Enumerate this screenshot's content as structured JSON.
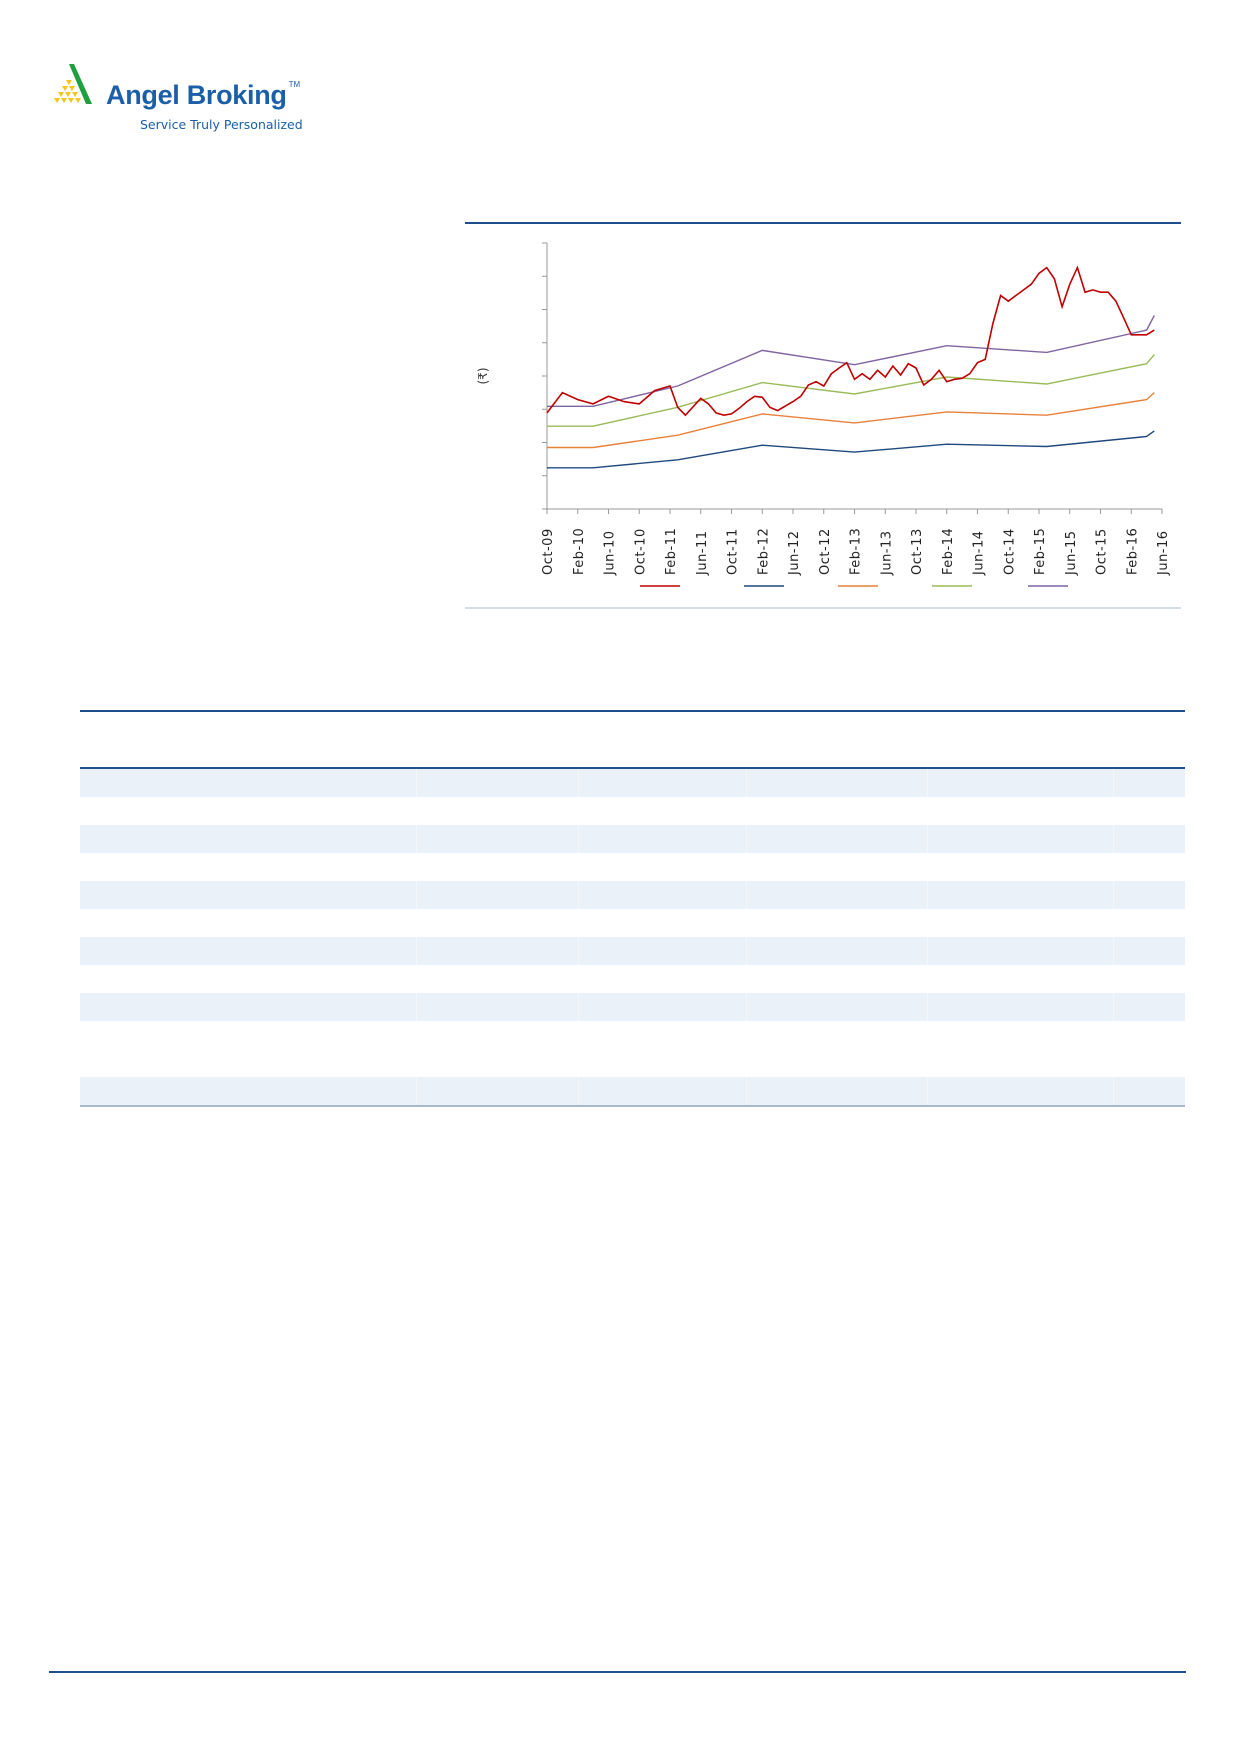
{
  "header": {
    "brand_name": "Angel Broking",
    "trademark": "TM",
    "tagline": "Service Truly Personalized"
  },
  "chart_data": {
    "type": "line",
    "title": "",
    "xlabel": "",
    "ylabel": "(₹)",
    "x_unit": "months since Oct-09",
    "x_tick_labels": [
      "Oct-09",
      "Feb-10",
      "Jun-10",
      "Oct-10",
      "Feb-11",
      "Jun-11",
      "Oct-11",
      "Feb-12",
      "Jun-12",
      "Oct-12",
      "Feb-13",
      "Jun-13",
      "Oct-13",
      "Feb-14",
      "Jun-14",
      "Oct-14",
      "Feb-15",
      "Jun-15",
      "Oct-15",
      "Feb-16",
      "Jun-16"
    ],
    "xlim": [
      0,
      80
    ],
    "ylim": [
      0,
      8
    ],
    "y_tick_count": 9,
    "y_tick_labels_visible": false,
    "legend_position": "bottom",
    "series": [
      {
        "color": "#c00000",
        "x": [
          0,
          2,
          4,
          6,
          8,
          10,
          12,
          14,
          16,
          17,
          18,
          20,
          21,
          22,
          23,
          24,
          25,
          26,
          27,
          28,
          29,
          30,
          32,
          33,
          34,
          35,
          36,
          37,
          38,
          39,
          40,
          41,
          42,
          43,
          44,
          45,
          46,
          47,
          48,
          49,
          50,
          51,
          52,
          53,
          54,
          55,
          56,
          57,
          58,
          59,
          60,
          61,
          62,
          63,
          64,
          65,
          66,
          67,
          68,
          69,
          70,
          71,
          72,
          73,
          74,
          75,
          76,
          77,
          78,
          79
        ],
        "y": [
          2.89,
          3.5,
          3.29,
          3.16,
          3.39,
          3.23,
          3.16,
          3.56,
          3.7,
          3.06,
          2.82,
          3.33,
          3.16,
          2.89,
          2.82,
          2.86,
          3.03,
          3.23,
          3.39,
          3.36,
          3.06,
          2.96,
          3.23,
          3.39,
          3.73,
          3.83,
          3.7,
          4.07,
          4.24,
          4.4,
          3.9,
          4.07,
          3.9,
          4.17,
          3.97,
          4.3,
          4.03,
          4.37,
          4.24,
          3.73,
          3.9,
          4.17,
          3.83,
          3.9,
          3.93,
          4.07,
          4.4,
          4.5,
          5.58,
          6.42,
          6.25,
          6.42,
          6.59,
          6.76,
          7.09,
          7.26,
          6.92,
          6.08,
          6.76,
          7.26,
          6.52,
          6.59,
          6.52,
          6.52,
          6.25,
          5.75,
          5.24,
          5.24,
          5.24,
          5.38
        ]
      },
      {
        "color": "#1f497d",
        "x": [
          0,
          6,
          17,
          28,
          40,
          52,
          65,
          78,
          79
        ],
        "y": [
          1.24,
          1.24,
          1.48,
          1.92,
          1.71,
          1.95,
          1.88,
          2.18,
          2.35
        ]
      },
      {
        "color": "#e8803a",
        "x": [
          0,
          6,
          17,
          28,
          40,
          52,
          65,
          78,
          79
        ],
        "y": [
          1.85,
          1.85,
          2.22,
          2.86,
          2.59,
          2.92,
          2.82,
          3.29,
          3.5
        ]
      },
      {
        "color": "#9bbb59",
        "x": [
          0,
          6,
          17,
          28,
          40,
          52,
          65,
          78,
          79
        ],
        "y": [
          2.49,
          2.49,
          3.06,
          3.8,
          3.46,
          3.97,
          3.76,
          4.37,
          4.64
        ]
      },
      {
        "color": "#8064a2",
        "x": [
          0,
          6,
          17,
          28,
          40,
          52,
          65,
          78,
          79
        ],
        "y": [
          3.09,
          3.09,
          3.7,
          4.77,
          4.34,
          4.91,
          4.71,
          5.38,
          5.82
        ]
      }
    ]
  },
  "table": {
    "rows": [
      {
        "shaded": true
      },
      {
        "shaded": false
      },
      {
        "shaded": true
      },
      {
        "shaded": false
      },
      {
        "shaded": true
      },
      {
        "shaded": false
      },
      {
        "shaded": true
      },
      {
        "shaded": false
      },
      {
        "shaded": true
      },
      {
        "shaded": false
      },
      {
        "shaded": false
      },
      {
        "shaded": true
      }
    ]
  },
  "colors": {
    "brand_blue": "#1b5fa8",
    "rule_blue": "#1f4e8c",
    "row_shade": "#eaf1f8"
  }
}
